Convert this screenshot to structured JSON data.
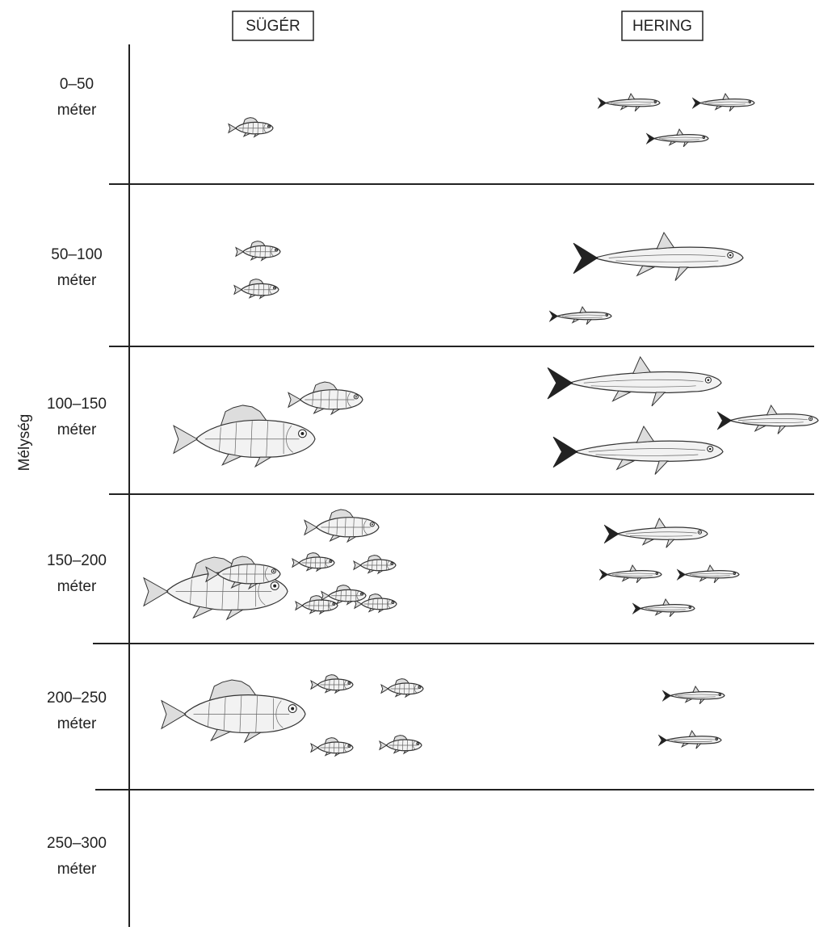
{
  "columns": [
    "SÜGÉR",
    "HERING"
  ],
  "axis_label": "Mélység",
  "rows": [
    {
      "depth": "0–50",
      "unit": "méter"
    },
    {
      "depth": "50–100",
      "unit": "méter"
    },
    {
      "depth": "100–150",
      "unit": "méter"
    },
    {
      "depth": "150–200",
      "unit": "méter"
    },
    {
      "depth": "200–250",
      "unit": "méter"
    },
    {
      "depth": "250–300",
      "unit": "méter"
    }
  ]
}
